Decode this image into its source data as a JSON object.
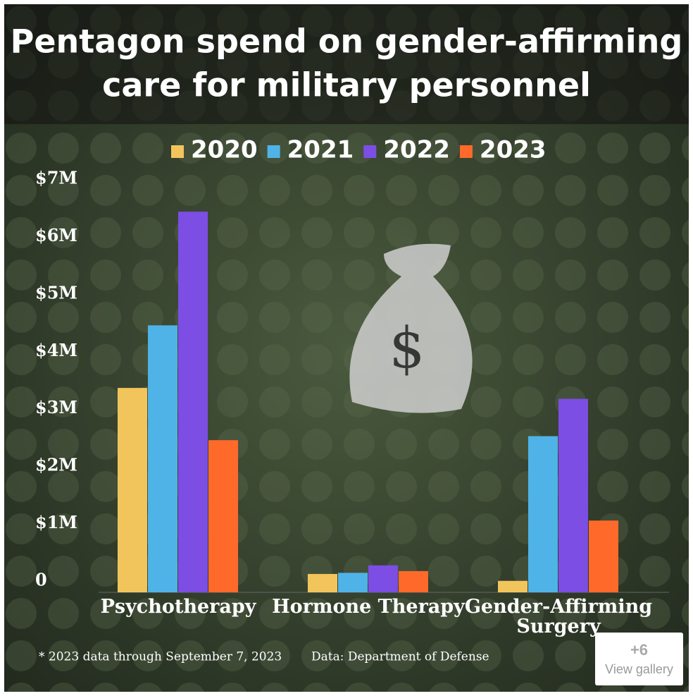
{
  "chart_data": {
    "type": "bar",
    "title": "Pentagon spend on gender-affirming",
    "subtitle": "care for military personnel",
    "categories": [
      "Psychotherapy",
      "Hormone Therapy",
      "Gender-Affirming Surgery"
    ],
    "series": [
      {
        "name": "2020",
        "color": "#f2c55c",
        "values": [
          3.56,
          0.32,
          0.2
        ]
      },
      {
        "name": "2021",
        "color": "#4fb3e8",
        "values": [
          4.65,
          0.34,
          2.72
        ]
      },
      {
        "name": "2022",
        "color": "#7c4ee4",
        "values": [
          6.63,
          0.47,
          3.37
        ]
      },
      {
        "name": "2023",
        "color": "#ff6a2b",
        "values": [
          2.65,
          0.37,
          1.25
        ]
      }
    ],
    "ylim": [
      0,
      7
    ],
    "yticks": [
      0,
      {
        "value": 1,
        "label": "$1M"
      },
      {
        "value": 2,
        "label": "$2M"
      },
      {
        "value": 3,
        "label": "$3M"
      },
      {
        "value": 4,
        "label": "$4M"
      },
      {
        "value": 5,
        "label": "$5M"
      },
      {
        "value": 6,
        "label": "$6M"
      },
      {
        "value": 7,
        "label": "$7M"
      }
    ],
    "footnote": "* 2023 data through September 7, 2023",
    "source": "Data: Department of Defense"
  },
  "gallery": {
    "count": "+6",
    "label": "View gallery"
  }
}
